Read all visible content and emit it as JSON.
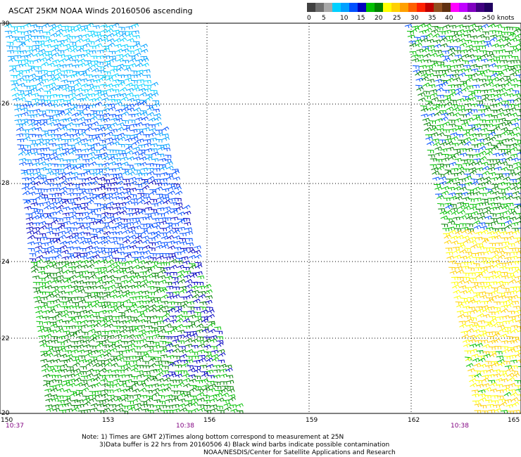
{
  "title": "ASCAT 25KM NOAA Winds 20160506 ascending",
  "colorbar": {
    "colors": [
      "#404040",
      "#707070",
      "#a8a8a8",
      "#00d0ff",
      "#00a0ff",
      "#0050ff",
      "#0000c0",
      "#00c000",
      "#008000",
      "#ffff00",
      "#ffd000",
      "#ffa000",
      "#ff6000",
      "#ff2000",
      "#c00000",
      "#905020",
      "#603010",
      "#ff00ff",
      "#c000ff",
      "#8000c0",
      "#400080",
      "#200060"
    ],
    "labels": [
      "0",
      "5",
      "10",
      "15",
      "20",
      "25",
      "30",
      "35",
      "40",
      "45",
      ">50 knots"
    ]
  },
  "lat_labels": [
    "30",
    "26",
    "28",
    "24",
    "22",
    "20"
  ],
  "lon_labels": [
    "150",
    "153",
    "156",
    "159",
    "162",
    "165"
  ],
  "time_labels": [
    "10:37",
    "10:38",
    "10:38"
  ],
  "notes": [
    "Note: 1) Times are GMT 2)Times along bottom correspond to measurement at 25N",
    "3)Data buffer is 22 hrs from 20160506 4) Black wind barbs indicate possible contamination",
    "NOAA/NESDIS/Center for Satellite Applications and Research"
  ]
}
